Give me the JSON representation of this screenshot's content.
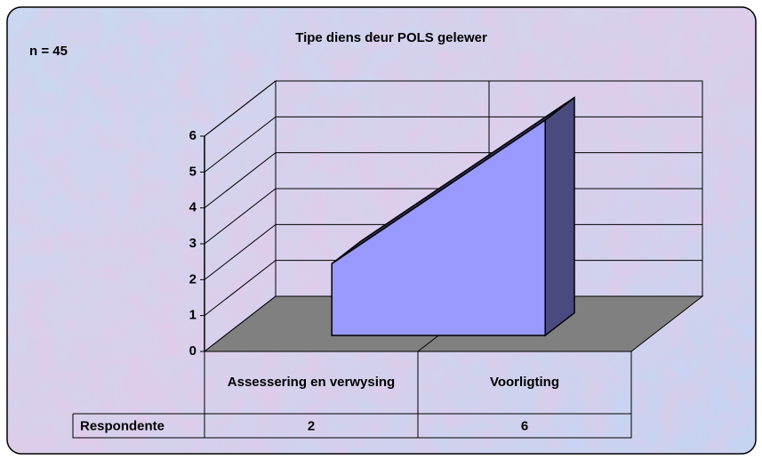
{
  "chart_data": {
    "type": "area3d",
    "title": "Tipe diens deur POLS gelewer",
    "annotation": "n = 45",
    "categories": [
      "Assessering en verwysing",
      "Voorligting"
    ],
    "series": [
      {
        "name": "Respondente",
        "color": "#9999ff",
        "values": [
          2,
          6
        ]
      }
    ],
    "ylim": [
      0,
      6
    ],
    "yticks": [
      0,
      1,
      2,
      3,
      4,
      5,
      6
    ],
    "grid": true,
    "data_table": true
  }
}
